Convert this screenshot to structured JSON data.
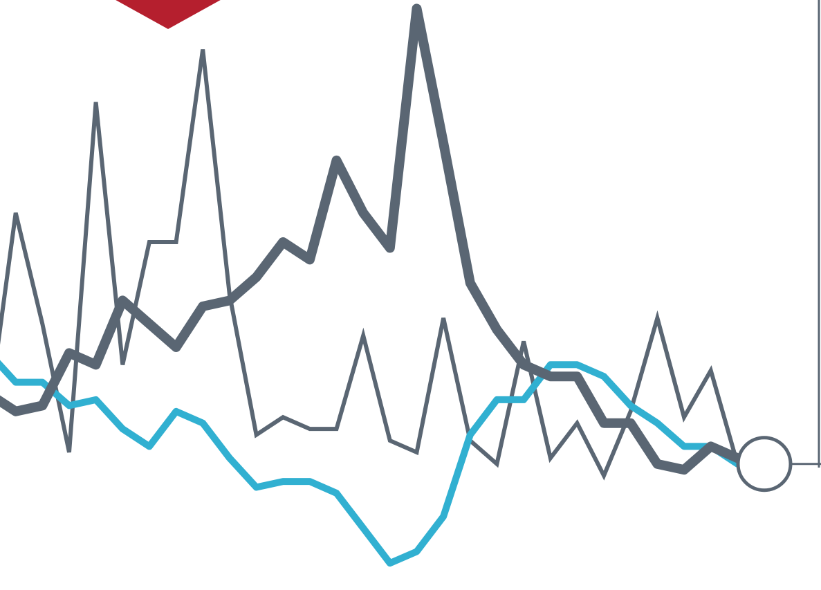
{
  "chart_data": {
    "type": "line",
    "title": "",
    "xlabel": "",
    "ylabel": "",
    "grid": false,
    "legend": "none",
    "x": [
      0,
      1,
      2,
      3,
      4,
      5,
      6,
      7,
      8,
      9,
      10,
      11,
      12,
      13,
      14,
      15,
      16,
      17,
      18,
      19,
      20,
      21,
      22,
      23,
      24,
      25,
      26,
      27,
      28,
      29
    ],
    "ylim": [
      0,
      100
    ],
    "series": [
      {
        "style": "thin",
        "color": "#5a6673",
        "values": [
          30,
          64,
          45,
          23,
          83,
          38,
          59,
          59,
          92,
          50,
          26,
          29,
          27,
          27,
          43,
          25,
          23,
          46,
          25,
          21,
          42,
          22,
          28,
          19,
          30,
          46,
          29,
          37,
          21,
          21
        ]
      },
      {
        "style": "thick",
        "color": "#5a6673",
        "values": [
          33,
          30,
          31,
          40,
          38,
          49,
          45,
          41,
          48,
          49,
          53,
          59,
          56,
          73,
          64,
          58,
          99,
          76,
          52,
          44,
          38,
          36,
          36,
          28,
          28,
          21,
          20,
          24,
          22,
          22
        ]
      },
      {
        "style": "accent",
        "color": "#31b0d1",
        "values": [
          40,
          35,
          35,
          31,
          32,
          27,
          24,
          30,
          28,
          22,
          17,
          18,
          18,
          16,
          10,
          4,
          6,
          12,
          26,
          32,
          32,
          38,
          38,
          36,
          31,
          28,
          24,
          24,
          21,
          21
        ]
      }
    ],
    "reference_line_value": 21,
    "marker_color": "#b51f2e"
  }
}
